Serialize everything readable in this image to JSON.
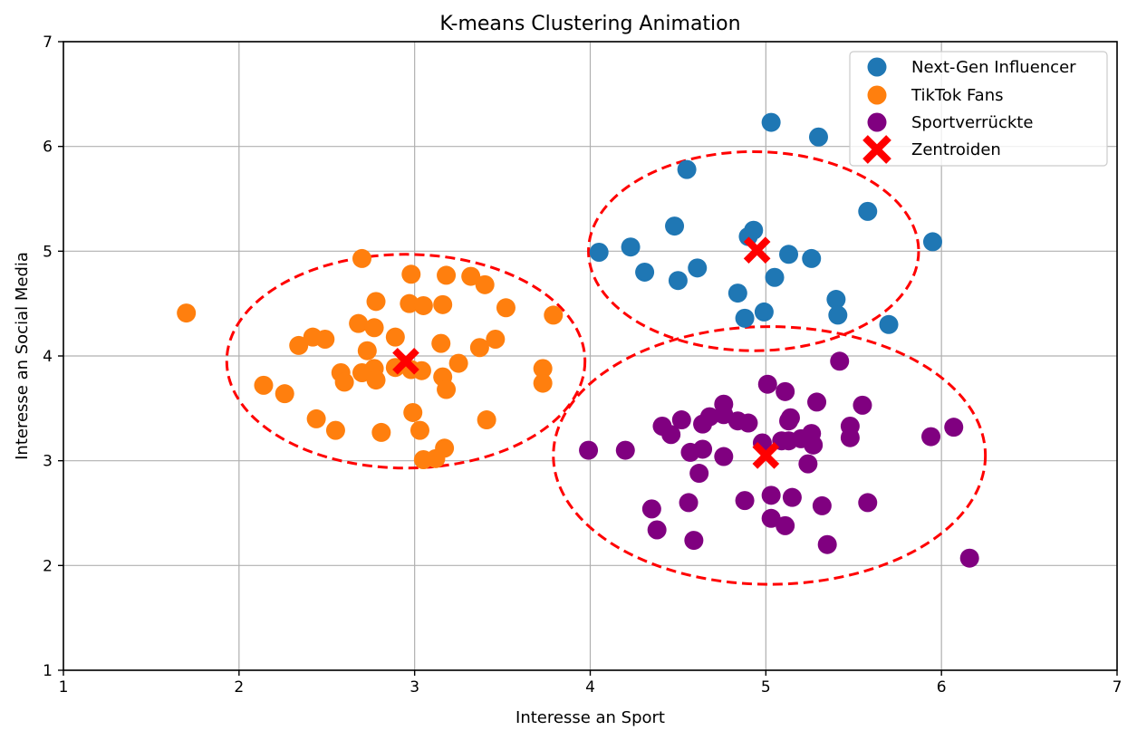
{
  "chart_data": {
    "type": "scatter",
    "title": "K-means Clustering Animation",
    "xlabel": "Interesse an Sport",
    "ylabel": "Interesse an Social Media",
    "xlim": [
      1,
      7
    ],
    "ylim": [
      1,
      7
    ],
    "xticks": [
      1,
      2,
      3,
      4,
      5,
      6,
      7
    ],
    "yticks": [
      1,
      2,
      3,
      4,
      5,
      6,
      7
    ],
    "grid": true,
    "legend_position": "top-right",
    "series": [
      {
        "name": "Next-Gen Influencer",
        "color": "#1f77b4",
        "points": [
          [
            5.03,
            6.23
          ],
          [
            5.3,
            6.09
          ],
          [
            4.55,
            5.78
          ],
          [
            5.58,
            5.38
          ],
          [
            4.48,
            5.24
          ],
          [
            4.93,
            5.2
          ],
          [
            4.9,
            5.14
          ],
          [
            4.23,
            5.04
          ],
          [
            5.95,
            5.09
          ],
          [
            4.05,
            4.99
          ],
          [
            5.13,
            4.97
          ],
          [
            5.26,
            4.93
          ],
          [
            4.31,
            4.8
          ],
          [
            4.61,
            4.84
          ],
          [
            4.5,
            4.72
          ],
          [
            5.05,
            4.75
          ],
          [
            4.84,
            4.6
          ],
          [
            5.4,
            4.54
          ],
          [
            4.99,
            4.42
          ],
          [
            4.88,
            4.36
          ],
          [
            5.41,
            4.39
          ],
          [
            5.7,
            4.3
          ]
        ]
      },
      {
        "name": "TikTok Fans",
        "color": "#ff7f0e",
        "points": [
          [
            1.7,
            4.41
          ],
          [
            2.7,
            4.93
          ],
          [
            2.98,
            4.78
          ],
          [
            3.18,
            4.77
          ],
          [
            3.32,
            4.76
          ],
          [
            3.4,
            4.68
          ],
          [
            2.78,
            4.52
          ],
          [
            2.97,
            4.5
          ],
          [
            3.05,
            4.48
          ],
          [
            3.16,
            4.49
          ],
          [
            3.52,
            4.46
          ],
          [
            3.79,
            4.39
          ],
          [
            2.68,
            4.31
          ],
          [
            2.77,
            4.27
          ],
          [
            2.42,
            4.18
          ],
          [
            2.49,
            4.16
          ],
          [
            2.89,
            4.18
          ],
          [
            3.46,
            4.16
          ],
          [
            2.34,
            4.1
          ],
          [
            3.15,
            4.12
          ],
          [
            3.37,
            4.08
          ],
          [
            2.73,
            4.05
          ],
          [
            3.25,
            3.93
          ],
          [
            2.89,
            3.89
          ],
          [
            2.98,
            3.87
          ],
          [
            3.73,
            3.88
          ],
          [
            2.58,
            3.84
          ],
          [
            2.7,
            3.84
          ],
          [
            2.77,
            3.88
          ],
          [
            3.04,
            3.86
          ],
          [
            3.16,
            3.8
          ],
          [
            2.78,
            3.77
          ],
          [
            2.6,
            3.75
          ],
          [
            3.73,
            3.74
          ],
          [
            2.14,
            3.72
          ],
          [
            3.18,
            3.68
          ],
          [
            2.26,
            3.64
          ],
          [
            2.99,
            3.46
          ],
          [
            2.44,
            3.4
          ],
          [
            3.41,
            3.39
          ],
          [
            2.55,
            3.29
          ],
          [
            3.03,
            3.29
          ],
          [
            2.81,
            3.27
          ],
          [
            3.17,
            3.12
          ],
          [
            3.05,
            3.01
          ],
          [
            3.12,
            3.02
          ]
        ]
      },
      {
        "name": "Sportverrückte",
        "color": "#800080",
        "points": [
          [
            5.42,
            3.95
          ],
          [
            5.01,
            3.73
          ],
          [
            5.11,
            3.66
          ],
          [
            5.29,
            3.56
          ],
          [
            4.76,
            3.54
          ],
          [
            5.55,
            3.53
          ],
          [
            4.76,
            3.44
          ],
          [
            4.68,
            3.42
          ],
          [
            4.84,
            3.38
          ],
          [
            4.9,
            3.36
          ],
          [
            5.14,
            3.41
          ],
          [
            5.13,
            3.38
          ],
          [
            4.52,
            3.39
          ],
          [
            4.64,
            3.35
          ],
          [
            4.41,
            3.33
          ],
          [
            5.48,
            3.33
          ],
          [
            6.07,
            3.32
          ],
          [
            4.46,
            3.25
          ],
          [
            5.26,
            3.26
          ],
          [
            5.48,
            3.22
          ],
          [
            5.94,
            3.23
          ],
          [
            4.98,
            3.17
          ],
          [
            5.09,
            3.19
          ],
          [
            5.13,
            3.19
          ],
          [
            5.2,
            3.21
          ],
          [
            5.27,
            3.15
          ],
          [
            3.99,
            3.1
          ],
          [
            4.2,
            3.1
          ],
          [
            4.57,
            3.08
          ],
          [
            4.64,
            3.11
          ],
          [
            4.76,
            3.04
          ],
          [
            5.24,
            2.97
          ],
          [
            4.62,
            2.88
          ],
          [
            5.03,
            2.67
          ],
          [
            5.15,
            2.65
          ],
          [
            4.88,
            2.62
          ],
          [
            4.56,
            2.6
          ],
          [
            5.58,
            2.6
          ],
          [
            5.32,
            2.57
          ],
          [
            4.35,
            2.54
          ],
          [
            5.03,
            2.45
          ],
          [
            5.11,
            2.38
          ],
          [
            4.38,
            2.34
          ],
          [
            4.59,
            2.24
          ],
          [
            5.35,
            2.2
          ],
          [
            6.16,
            2.07
          ]
        ]
      }
    ],
    "centroids": {
      "name": "Zentroiden",
      "color": "#ff0000",
      "points": [
        [
          4.95,
          5.01
        ],
        [
          2.95,
          3.95
        ],
        [
          5.0,
          3.05
        ]
      ]
    },
    "ellipses": {
      "color": "#ff0000",
      "style": "dashed",
      "items": [
        {
          "cx": 4.93,
          "cy": 5.0,
          "rx": 0.94,
          "ry": 0.95
        },
        {
          "cx": 2.95,
          "cy": 3.95,
          "rx": 1.02,
          "ry": 1.02
        },
        {
          "cx": 5.02,
          "cy": 3.05,
          "rx": 1.23,
          "ry": 1.23
        }
      ]
    }
  }
}
